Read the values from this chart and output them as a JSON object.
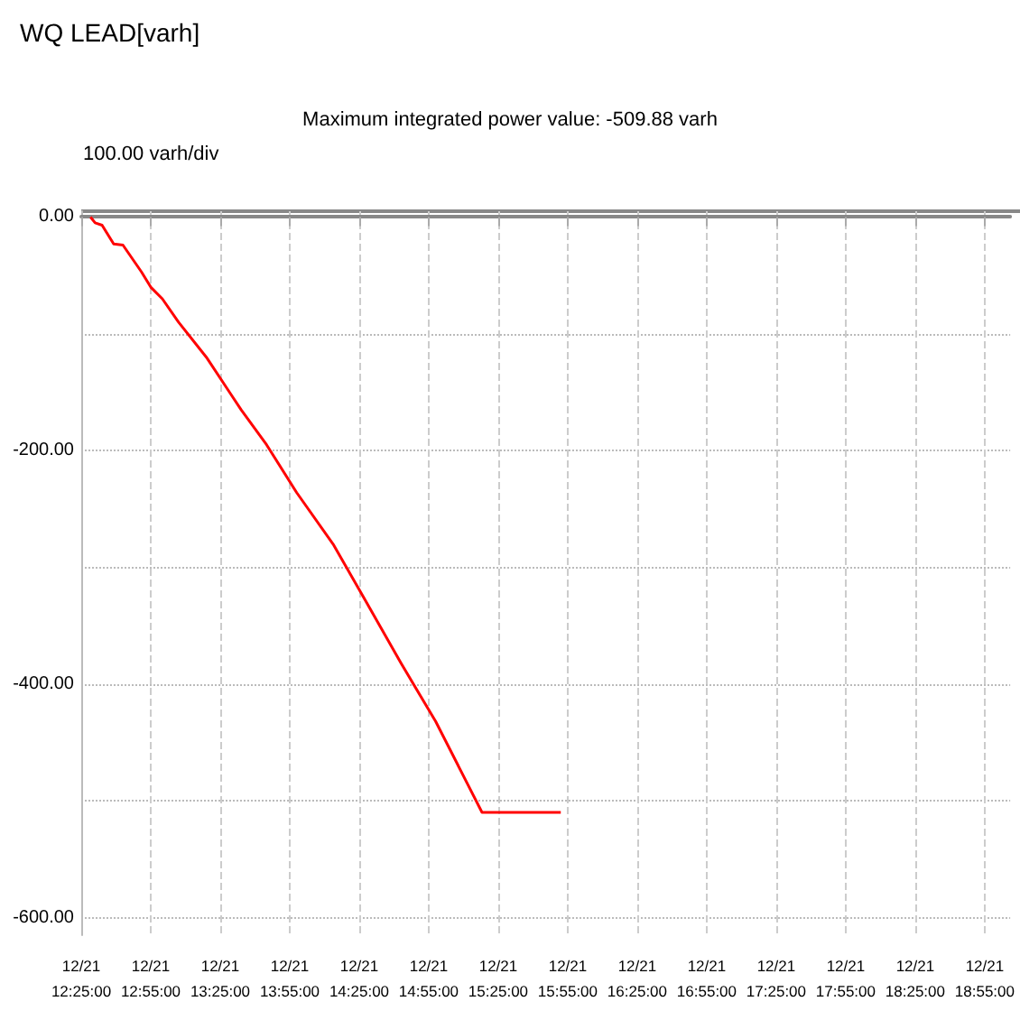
{
  "chart_data": {
    "type": "line",
    "title": "WQ LEAD[varh]",
    "subtitle": "Maximum integrated power value: -509.88 varh",
    "annotations": [
      "100.00 varh/div"
    ],
    "x": [
      "--12-21T12:29",
      "--12-21T12:31",
      "--12-21T12:34",
      "--12-21T12:39",
      "--12-21T12:43",
      "--12-21T12:51",
      "--12-21T12:55",
      "--12-21T13:00",
      "--12-21T13:07",
      "--12-21T13:19",
      "--12-21T13:34",
      "--12-21T13:45",
      "--12-21T13:58",
      "--12-21T14:14",
      "--12-21T14:27",
      "--12-21T14:43",
      "--12-21T14:58",
      "--12-21T15:18",
      "--12-21T15:52"
    ],
    "series": [
      {
        "color": "#ff0000",
        "values": [
          0,
          -5,
          -7,
          -23,
          -24,
          -47,
          -60,
          -70,
          -90,
          -120,
          -165,
          -195,
          -236,
          -281,
          -326,
          -382,
          -432,
          -509.88,
          -509.88
        ]
      }
    ],
    "xlim": [
      "--12-21T12:25",
      "--12-21T19:06"
    ],
    "xticks": [
      {
        "value": "--12-21T12:25",
        "label": "12/21\n12:25:00"
      },
      {
        "value": "--12-21T12:55",
        "label": "12/21\n12:55:00"
      },
      {
        "value": "--12-21T13:25",
        "label": "12/21\n13:25:00"
      },
      {
        "value": "--12-21T13:55",
        "label": "12/21\n13:55:00"
      },
      {
        "value": "--12-21T14:25",
        "label": "12/21\n14:25:00"
      },
      {
        "value": "--12-21T14:55",
        "label": "12/21\n14:55:00"
      },
      {
        "value": "--12-21T15:25",
        "label": "12/21\n15:25:00"
      },
      {
        "value": "--12-21T15:55",
        "label": "12/21\n15:55:00"
      },
      {
        "value": "--12-21T16:25",
        "label": "12/21\n16:25:00"
      },
      {
        "value": "--12-21T16:55",
        "label": "12/21\n16:55:00"
      },
      {
        "value": "--12-21T17:25",
        "label": "12/21\n17:25:00"
      },
      {
        "value": "--12-21T17:55",
        "label": "12/21\n17:55:00"
      },
      {
        "value": "--12-21T18:25",
        "label": "12/21\n18:25:00"
      },
      {
        "value": "--12-21T18:55",
        "label": "12/21\n18:55:00"
      }
    ],
    "ylim": [
      -615,
      5
    ],
    "yticks": [
      {
        "value": 0,
        "label": "0.00"
      },
      {
        "value": -100,
        "label": null
      },
      {
        "value": -200,
        "label": "-200.00"
      },
      {
        "value": -300,
        "label": null
      },
      {
        "value": -400,
        "label": "-400.00"
      },
      {
        "value": -500,
        "label": null
      },
      {
        "value": -600,
        "label": "-600.00"
      }
    ],
    "grid": true,
    "marker": "none",
    "line_style": "solid"
  }
}
